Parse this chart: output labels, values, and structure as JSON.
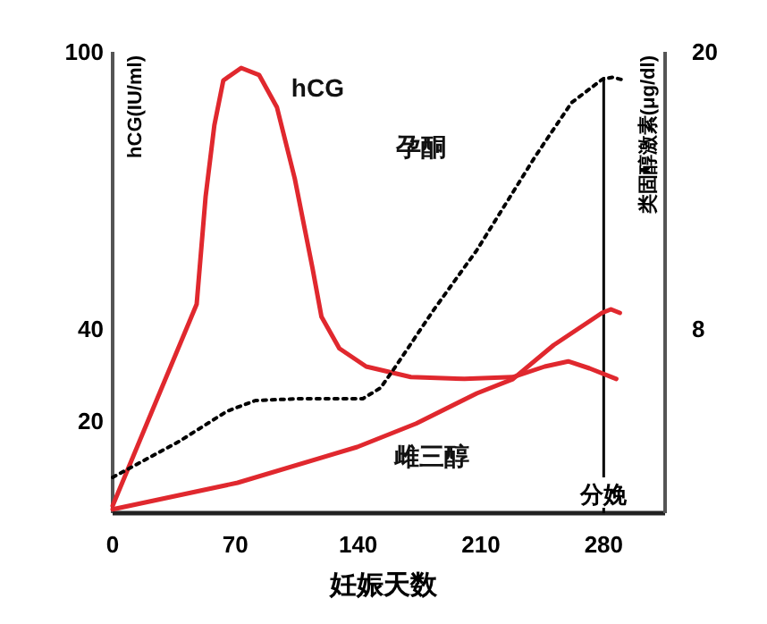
{
  "chart_data": {
    "type": "line",
    "xlabel": "妊娠天数",
    "ylabel": "hCG(IU/ml)",
    "y2label": "类固醇激素(μg/dl)",
    "xlim": [
      0,
      315
    ],
    "xticks": [
      0,
      70,
      140,
      210,
      280
    ],
    "ylim": [
      0,
      100
    ],
    "yticks": [
      20,
      40,
      100
    ],
    "y2lim": [
      0,
      20
    ],
    "y2ticks": [
      8,
      20
    ],
    "grid": false,
    "legend": false,
    "marker": "none",
    "ref_lines": [
      {
        "axis": "x",
        "value": 280,
        "label": "分娩",
        "color": "#000000"
      }
    ],
    "series": [
      {
        "name": "hCG",
        "color": "#e0282e",
        "line_style": "solid",
        "x": [
          0,
          22.4,
          47.9,
          53,
          58,
          63.1,
          73.3,
          83.5,
          93.7,
          103.9,
          114,
          119.1,
          129.3,
          144.6,
          170,
          200.6,
          228.1,
          246.4,
          259.7,
          271.9,
          287.2
        ],
        "values": [
          1.6,
          22.1,
          45.3,
          68.6,
          84.1,
          93.8,
          96.5,
          95,
          88,
          72.5,
          53.1,
          42.6,
          35.7,
          31.8,
          29.5,
          29.1,
          29.5,
          31.8,
          32.9,
          31.4,
          29.1
        ]
      },
      {
        "name": "孕酮",
        "color": "#000000",
        "line_style": "dotted",
        "axis": "y2",
        "x": [
          0,
          37.7,
          65.2,
          81.5,
          105.9,
          142.6,
          152.7,
          159.9,
          183.3,
          207.7,
          241.3,
          261.7,
          279,
          285.1,
          290.2
        ],
        "values": [
          1.55,
          3.1,
          4.42,
          4.88,
          4.96,
          4.96,
          5.43,
          6.2,
          8.84,
          11.4,
          15.5,
          17.8,
          18.8,
          18.9,
          18.8
        ]
      },
      {
        "name": "雌三醇",
        "color": "#e0282e",
        "line_style": "solid",
        "axis": "y2",
        "x": [
          0,
          71.3,
          139.5,
          173.1,
          207.7,
          228.1,
          251.5,
          279,
          284.1,
          289.2
        ],
        "values": [
          0.16,
          1.32,
          2.87,
          3.88,
          5.19,
          5.81,
          7.29,
          8.68,
          8.84,
          8.68
        ]
      }
    ]
  }
}
